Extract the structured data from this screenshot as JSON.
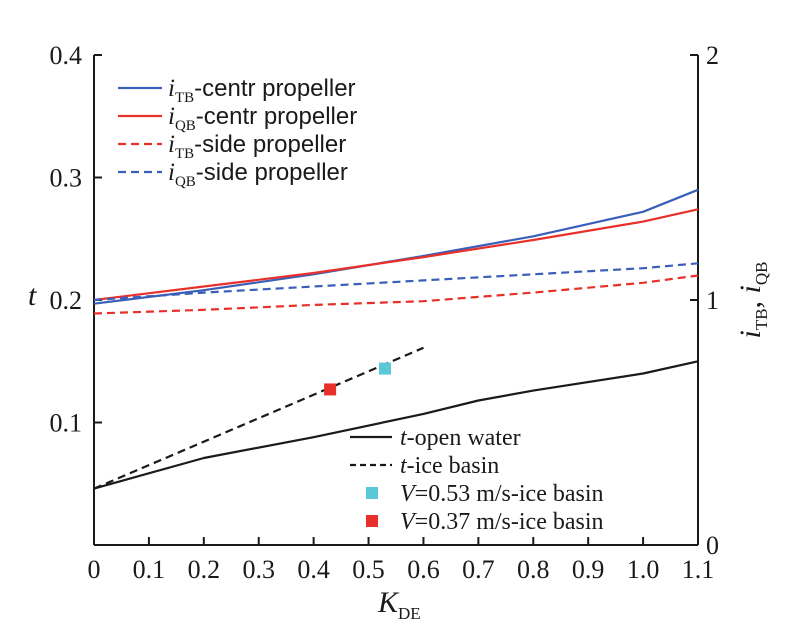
{
  "chart_data": {
    "type": "line",
    "x_axis": {
      "label_main": "K",
      "label_sub": "DE",
      "range": [
        0,
        1.1
      ],
      "ticks": [
        0,
        0.1,
        0.2,
        0.3,
        0.4,
        0.5,
        0.6,
        0.7,
        0.8,
        0.9,
        1.0,
        1.1
      ],
      "tick_labels": [
        "0",
        "0.1",
        "0.2",
        "0.3",
        "0.4",
        "0.5",
        "0.6",
        "0.7",
        "0.8",
        "0.9",
        "1.0",
        "1.1"
      ]
    },
    "y_axis_left": {
      "label": "t",
      "range": [
        0,
        0.4
      ],
      "ticks": [
        0.1,
        0.2,
        0.3,
        0.4
      ],
      "tick_labels": [
        "0.1",
        "0.2",
        "0.3",
        "0.4"
      ]
    },
    "y_axis_right": {
      "label_parts": [
        "i",
        "TB",
        ", ",
        "i",
        "QB"
      ],
      "range": [
        0,
        2
      ],
      "ticks": [
        0,
        1,
        2
      ],
      "tick_labels": [
        "0",
        "1",
        "2"
      ]
    },
    "series": [
      {
        "name": "i_TB-centr propeller",
        "axis": "right",
        "color": "#3a5fb8",
        "style": "solid",
        "x": [
          0,
          0.2,
          0.4,
          0.6,
          0.8,
          1.0,
          1.1
        ],
        "y": [
          0.985,
          1.04,
          1.105,
          1.18,
          1.26,
          1.36,
          1.45
        ]
      },
      {
        "name": "i_QB-centr propeller",
        "axis": "right",
        "color": "#e8302a",
        "style": "solid",
        "x": [
          0,
          0.2,
          0.4,
          0.6,
          0.8,
          1.0,
          1.1
        ],
        "y": [
          1.0,
          1.055,
          1.11,
          1.175,
          1.245,
          1.32,
          1.37
        ]
      },
      {
        "name": "i_TB-side propeller",
        "axis": "right",
        "color": "#e8302a",
        "style": "dashed",
        "x": [
          0,
          0.2,
          0.4,
          0.6,
          0.8,
          1.0,
          1.1
        ],
        "y": [
          0.945,
          0.96,
          0.98,
          0.995,
          1.03,
          1.07,
          1.1
        ]
      },
      {
        "name": "i_QB-side propeller",
        "axis": "right",
        "color": "#3a5fb8",
        "style": "dashed",
        "x": [
          0,
          0.2,
          0.4,
          0.6,
          0.8,
          1.0,
          1.1
        ],
        "y": [
          1.0,
          1.03,
          1.055,
          1.08,
          1.105,
          1.13,
          1.15
        ]
      },
      {
        "name": "t-open water",
        "axis": "left",
        "color": "#1a1a1a",
        "style": "solid",
        "x": [
          0,
          0.2,
          0.4,
          0.6,
          0.7,
          0.8,
          1.0,
          1.1
        ],
        "y": [
          0.046,
          0.071,
          0.088,
          0.107,
          0.118,
          0.126,
          0.14,
          0.15
        ]
      },
      {
        "name": "t-ice basin",
        "axis": "left",
        "color": "#1a1a1a",
        "style": "dashed",
        "x": [
          0,
          0.6
        ],
        "y": [
          0.046,
          0.161
        ]
      }
    ],
    "points": [
      {
        "name": "V=0.53 m/s-ice basin",
        "axis": "left",
        "color": "#5bc8d8",
        "x": 0.53,
        "y": 0.144
      },
      {
        "name": "V=0.37 m/s-ice basin",
        "axis": "left",
        "color": "#e8302a",
        "x": 0.43,
        "y": 0.127
      }
    ],
    "legend_top": [
      {
        "series": 0,
        "var": "i",
        "sub": "TB",
        "rest": "-centr propeller"
      },
      {
        "series": 1,
        "var": "i",
        "sub": "QB",
        "rest": "-centr propeller"
      },
      {
        "series": 2,
        "var": "i",
        "sub": "TB",
        "rest": "-side propeller"
      },
      {
        "series": 3,
        "var": "i",
        "sub": "QB",
        "rest": "-side propeller"
      }
    ],
    "legend_bottom": [
      {
        "kind": "line",
        "series": 4,
        "var": "t",
        "rest": "-open water"
      },
      {
        "kind": "line",
        "series": 5,
        "var": "t",
        "rest": "-ice basin"
      },
      {
        "kind": "marker",
        "point": 0,
        "var": "V",
        "rest": "=0.53 m/s-ice basin"
      },
      {
        "kind": "marker",
        "point": 1,
        "var": "V",
        "rest": "=0.37 m/s-ice basin"
      }
    ]
  }
}
